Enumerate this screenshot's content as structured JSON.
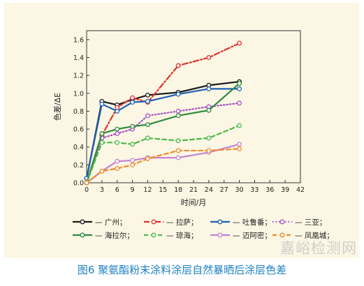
{
  "caption": "图6 聚氨酯粉末涂料涂层自然暴晒后涂层色差",
  "watermark": "嘉峪检测网",
  "chart_data": {
    "type": "line",
    "title": "",
    "xlabel": "时间/月",
    "ylabel": "色差/ΔE",
    "xlim": [
      0,
      42
    ],
    "ylim": [
      0,
      1.7
    ],
    "xticks": [
      0,
      3,
      6,
      9,
      12,
      15,
      18,
      21,
      24,
      27,
      30,
      33,
      36,
      39,
      42
    ],
    "yticks": [
      0.0,
      0.2,
      0.4,
      0.6,
      0.8,
      1.0,
      1.2,
      1.4,
      1.6
    ],
    "x": [
      0,
      3,
      6,
      9,
      12,
      18,
      24,
      30
    ],
    "legend_placement": "bottom",
    "series": [
      {
        "name": "广州",
        "color": "#1a1a1a",
        "dash": "solid",
        "values": [
          0.05,
          0.91,
          0.87,
          0.93,
          0.98,
          1.01,
          1.09,
          1.13
        ]
      },
      {
        "name": "拉萨",
        "color": "#e0302c",
        "dash": "dashdot",
        "values": [
          0.0,
          0.53,
          0.84,
          0.95,
          0.9,
          1.31,
          1.4,
          1.56
        ]
      },
      {
        "name": "吐鲁番",
        "color": "#1f5fb4",
        "dash": "solid",
        "values": [
          0.05,
          0.88,
          0.8,
          0.9,
          0.91,
          0.99,
          1.05,
          1.05
        ]
      },
      {
        "name": "三亚",
        "color": "#a64fc4",
        "dash": "dotted",
        "values": [
          0.0,
          0.5,
          0.55,
          0.6,
          0.75,
          0.8,
          0.85,
          0.89
        ]
      },
      {
        "name": "海拉尔",
        "color": "#2e8b3e",
        "dash": "solid",
        "values": [
          0.0,
          0.55,
          0.6,
          0.63,
          0.65,
          0.75,
          0.81,
          1.11
        ]
      },
      {
        "name": "琼海",
        "color": "#4db848",
        "dash": "dashed",
        "values": [
          0.0,
          0.45,
          0.45,
          0.43,
          0.5,
          0.47,
          0.5,
          0.64
        ]
      },
      {
        "name": "迈阿密",
        "color": "#c483d1",
        "dash": "solid",
        "values": [
          0.0,
          0.13,
          0.24,
          0.25,
          0.28,
          0.28,
          0.34,
          0.43
        ]
      },
      {
        "name": "凤凰城",
        "color": "#ef8a2a",
        "dash": "dashed",
        "values": [
          0.0,
          0.13,
          0.16,
          0.2,
          0.27,
          0.36,
          0.36,
          0.38
        ]
      }
    ]
  }
}
